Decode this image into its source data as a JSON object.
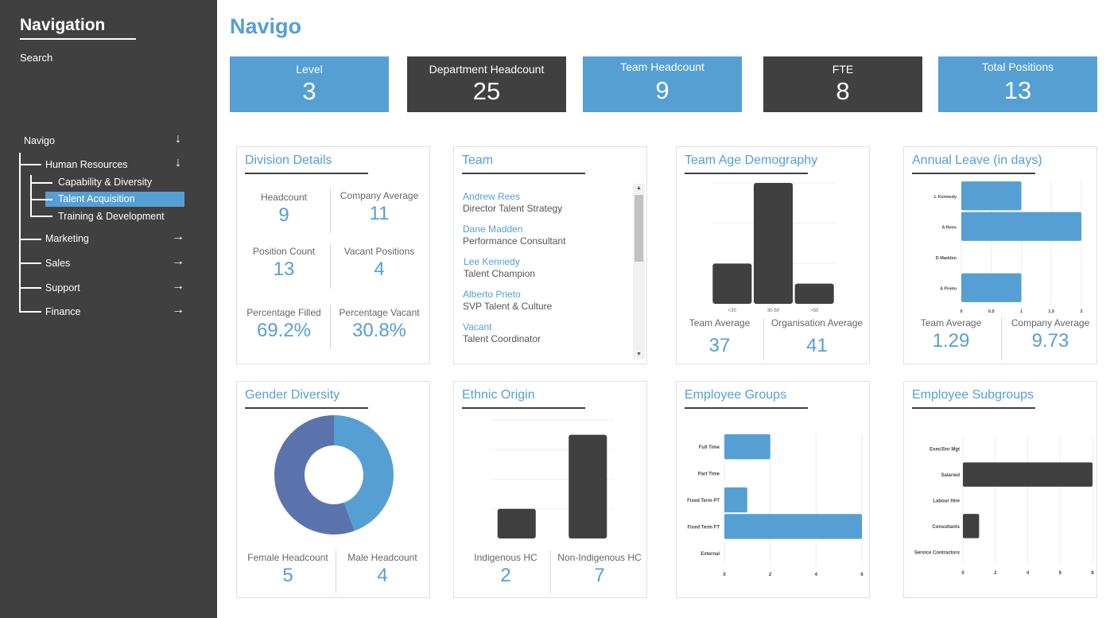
{
  "sidebar": {
    "title": "Navigation",
    "search_label": "Search",
    "tree": {
      "root": "Navigo",
      "hr": "Human Resources",
      "hr_children": [
        "Capability & Diversity",
        "Talent Acquisition",
        "Training & Development"
      ],
      "selected": "Talent Acquisition",
      "departments": [
        "Marketing",
        "Sales",
        "Support",
        "Finance"
      ],
      "expanded_icon": "↓",
      "collapsed_icon": "→"
    }
  },
  "header": {
    "title": "Navigo"
  },
  "kpis": [
    {
      "label": "Level",
      "value": "3"
    },
    {
      "label": "Department Headcount",
      "value": "25"
    },
    {
      "label": "Team Headcount",
      "value": "9"
    },
    {
      "label": "FTE",
      "value": "8"
    },
    {
      "label": "Total Positions",
      "value": "13"
    }
  ],
  "colors": {
    "accent": "#559fd3",
    "dark": "#404040",
    "female": "#5b73ad"
  },
  "division": {
    "title": "Division Details",
    "stats": [
      {
        "label": "Headcount",
        "value": "9"
      },
      {
        "label": "Company Average",
        "value": "11"
      },
      {
        "label": "Position Count",
        "value": "13"
      },
      {
        "label": "Vacant Positions",
        "value": "4"
      },
      {
        "label": "Percentage Filled",
        "value": "69.2%"
      },
      {
        "label": "Percentage Vacant",
        "value": "30.8%"
      }
    ]
  },
  "team": {
    "title": "Team",
    "members": [
      {
        "name": "Andrew Rees",
        "role": "Director Talent Strategy"
      },
      {
        "name": "Dane Madden",
        "role": "Performance Consultant"
      },
      {
        "name": "Lee Kennedy",
        "role": "Talent Champion"
      },
      {
        "name": "Alberto Prieto",
        "role": "SVP Talent & Culture"
      },
      {
        "name": "Vacant",
        "role": "Talent Coordinator"
      }
    ]
  },
  "age": {
    "title": "Team Age Demography",
    "stats": [
      {
        "label": "Team Average",
        "value": "37"
      },
      {
        "label": "Organisation Average",
        "value": "41"
      }
    ]
  },
  "leave": {
    "title": "Annual Leave (in days)",
    "stats": [
      {
        "label": "Team Average",
        "value": "1.29"
      },
      {
        "label": "Company Average",
        "value": "9.73"
      }
    ]
  },
  "gender": {
    "title": "Gender Diversity",
    "stats": [
      {
        "label": "Female Headcount",
        "value": "5"
      },
      {
        "label": "Male Headcount",
        "value": "4"
      }
    ]
  },
  "ethnic": {
    "title": "Ethnic Origin",
    "stats": [
      {
        "label": "Indigenous HC",
        "value": "2"
      },
      {
        "label": "Non-Indigenous HC",
        "value": "7"
      }
    ]
  },
  "groups": {
    "title": "Employee Groups"
  },
  "subgroups": {
    "title": "Employee Subgroups"
  },
  "chart_data": [
    {
      "id": "age",
      "type": "bar",
      "title": "Team Age Demography",
      "categories": [
        "<30",
        "30-50",
        ">50"
      ],
      "values": [
        2,
        6,
        1
      ],
      "ylim": [
        0,
        6
      ],
      "grid": true,
      "color": "#404040"
    },
    {
      "id": "leave",
      "type": "bar",
      "orientation": "horizontal",
      "title": "Annual Leave (in days)",
      "categories": [
        "L Kennedy",
        "A Rees",
        "D Madden",
        "A Prieto"
      ],
      "values": [
        1,
        2,
        0,
        1
      ],
      "xlim": [
        0,
        2
      ],
      "ticks": [
        "0",
        "0.5",
        "1",
        "1.5",
        "2"
      ],
      "grid": true,
      "color": "#559fd3"
    },
    {
      "id": "gender",
      "type": "pie",
      "donut": true,
      "title": "Gender Diversity",
      "categories": [
        "Male",
        "Female"
      ],
      "values": [
        4,
        5
      ],
      "colors": [
        "#559fd3",
        "#5b73ad"
      ]
    },
    {
      "id": "ethnic",
      "type": "bar",
      "title": "Ethnic Origin",
      "categories": [
        "Indigenous HC",
        "Non-Indigenous HC"
      ],
      "values": [
        2,
        7
      ],
      "ylim": [
        0,
        8
      ],
      "grid": true,
      "color": "#404040"
    },
    {
      "id": "groups",
      "type": "bar",
      "orientation": "horizontal",
      "title": "Employee Groups",
      "categories": [
        "Full Time",
        "Part Time",
        "Fixed Term PT",
        "Fixed Term FT",
        "External"
      ],
      "values": [
        2,
        0,
        1,
        6,
        0
      ],
      "xlim": [
        0,
        6
      ],
      "ticks": [
        "0",
        "2",
        "4",
        "6"
      ],
      "grid": true,
      "color": "#559fd3"
    },
    {
      "id": "subgroups",
      "type": "bar",
      "orientation": "horizontal",
      "title": "Employee Subgroups",
      "categories": [
        "Exec/Snr Mgt",
        "Salaried",
        "Labour Hire",
        "Consultants",
        "Service Contractors"
      ],
      "values": [
        0,
        8,
        0,
        1,
        0
      ],
      "xlim": [
        0,
        8
      ],
      "ticks": [
        "0",
        "2",
        "4",
        "6",
        "8"
      ],
      "grid": true,
      "color": "#404040"
    }
  ]
}
